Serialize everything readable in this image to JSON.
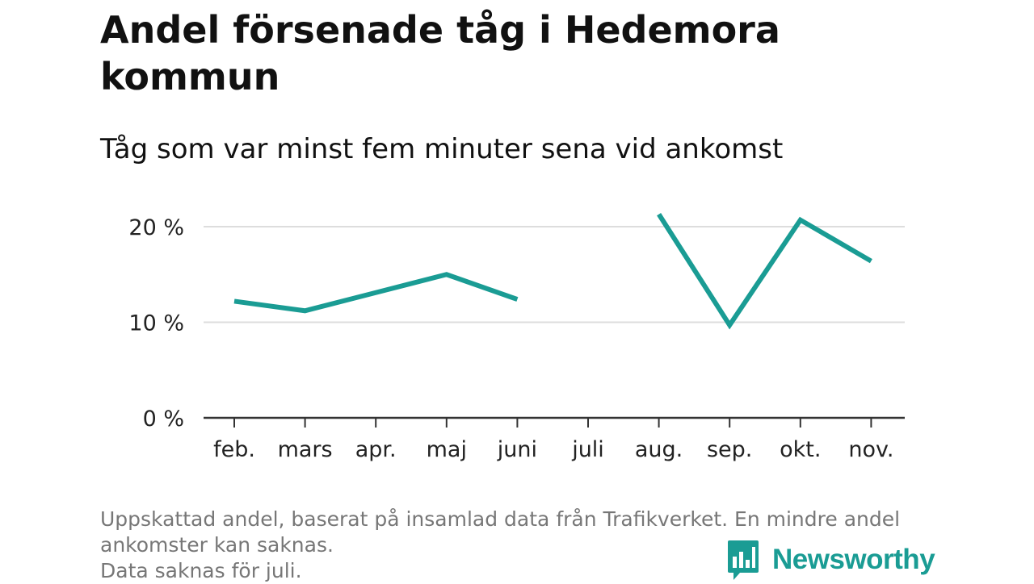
{
  "title": "Andel försenade tåg i Hedemora kommun",
  "subtitle": "Tåg som var minst fem minuter sena vid ankomst",
  "footnote": [
    "Uppskattad andel, baserat på insamlad data från Trafikverket. En mindre andel",
    "ankomster kan saknas.",
    "Data saknas för juli."
  ],
  "brand": {
    "name": "Newsworthy",
    "icon": "bar-chart-speech-bubble-icon"
  },
  "colors": {
    "line": "#1a9c94",
    "grid": "#dddddd",
    "axis": "#333333"
  },
  "chart_data": {
    "type": "line",
    "categories": [
      "feb.",
      "mars",
      "apr.",
      "maj",
      "juni",
      "juli",
      "aug.",
      "sep.",
      "okt.",
      "nov."
    ],
    "series": [
      {
        "values": [
          12.2,
          11.2,
          13.1,
          15.0,
          12.4,
          null,
          21.3,
          9.7,
          20.7,
          16.4
        ]
      }
    ],
    "y_ticks": [
      0,
      10,
      20
    ],
    "y_tick_labels": [
      "0 %",
      "10 %",
      "20 %"
    ],
    "ylim": [
      0,
      22
    ],
    "grid": true,
    "xlabel": "",
    "ylabel": ""
  }
}
